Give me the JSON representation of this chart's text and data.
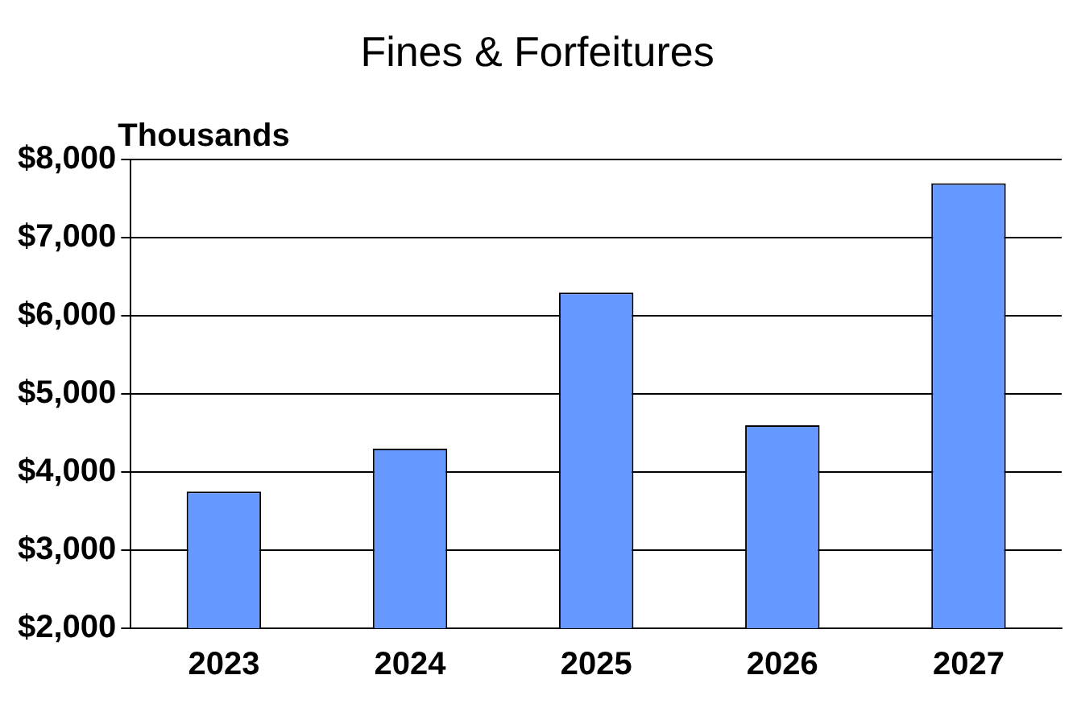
{
  "chart_data": {
    "type": "bar",
    "title": "Fines & Forfeitures",
    "ylabel": "Thousands",
    "categories": [
      "2023",
      "2024",
      "2025",
      "2026",
      "2027"
    ],
    "values": [
      3750,
      4300,
      6300,
      4600,
      7700
    ],
    "color": "#6699ff",
    "ylim": [
      2000,
      8000
    ],
    "yticks": [
      {
        "value": 2000,
        "label": "$2,000"
      },
      {
        "value": 3000,
        "label": "$3,000"
      },
      {
        "value": 4000,
        "label": "$4,000"
      },
      {
        "value": 5000,
        "label": "$5,000"
      },
      {
        "value": 6000,
        "label": "$6,000"
      },
      {
        "value": 7000,
        "label": "$7,000"
      },
      {
        "value": 8000,
        "label": "$8,000"
      }
    ],
    "grid": "y",
    "legend": false
  }
}
